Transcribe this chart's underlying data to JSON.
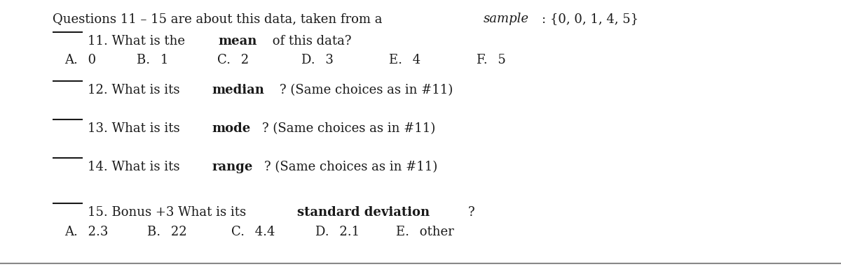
{
  "bg_color": "#ffffff",
  "text_color": "#1a1a1a",
  "font_size": 13,
  "line_color": "#1a1a1a",
  "header_parts": [
    {
      "text": "Questions 11 – 15 are about this data, taken from a ",
      "style": "normal"
    },
    {
      "text": "sample",
      "style": "italic"
    },
    {
      "text": ": {0, 0, 1, 4, 5}",
      "style": "normal"
    }
  ],
  "questions": [
    {
      "line_blank": true,
      "parts": [
        {
          "text": "11. What is the ",
          "style": "normal"
        },
        {
          "text": "mean",
          "style": "bold"
        },
        {
          "text": " of this data?",
          "style": "normal"
        }
      ],
      "choices": [
        "A.  0",
        "B.  1",
        "C.  2",
        "D.  3",
        "E.  4",
        "F.  5"
      ]
    },
    {
      "line_blank": true,
      "parts": [
        {
          "text": "12. What is its ",
          "style": "normal"
        },
        {
          "text": "median",
          "style": "bold"
        },
        {
          "text": "? (Same choices as in #11)",
          "style": "normal"
        }
      ],
      "choices": []
    },
    {
      "line_blank": true,
      "parts": [
        {
          "text": "13. What is its ",
          "style": "normal"
        },
        {
          "text": "mode",
          "style": "bold"
        },
        {
          "text": "? (Same choices as in #11)",
          "style": "normal"
        }
      ],
      "choices": []
    },
    {
      "line_blank": true,
      "parts": [
        {
          "text": "14. What is its ",
          "style": "normal"
        },
        {
          "text": "range",
          "style": "bold"
        },
        {
          "text": "? (Same choices as in #11)",
          "style": "normal"
        }
      ],
      "choices": []
    },
    {
      "line_blank": true,
      "parts": [
        {
          "text": "15. Bonus +3 What is its ",
          "style": "normal"
        },
        {
          "text": "standard deviation",
          "style": "bold"
        },
        {
          "text": "?",
          "style": "normal"
        }
      ],
      "choices": [
        "A.  2.3",
        "B.  22",
        "C.  4.4",
        "D.  2.1",
        "E.  other"
      ]
    }
  ]
}
